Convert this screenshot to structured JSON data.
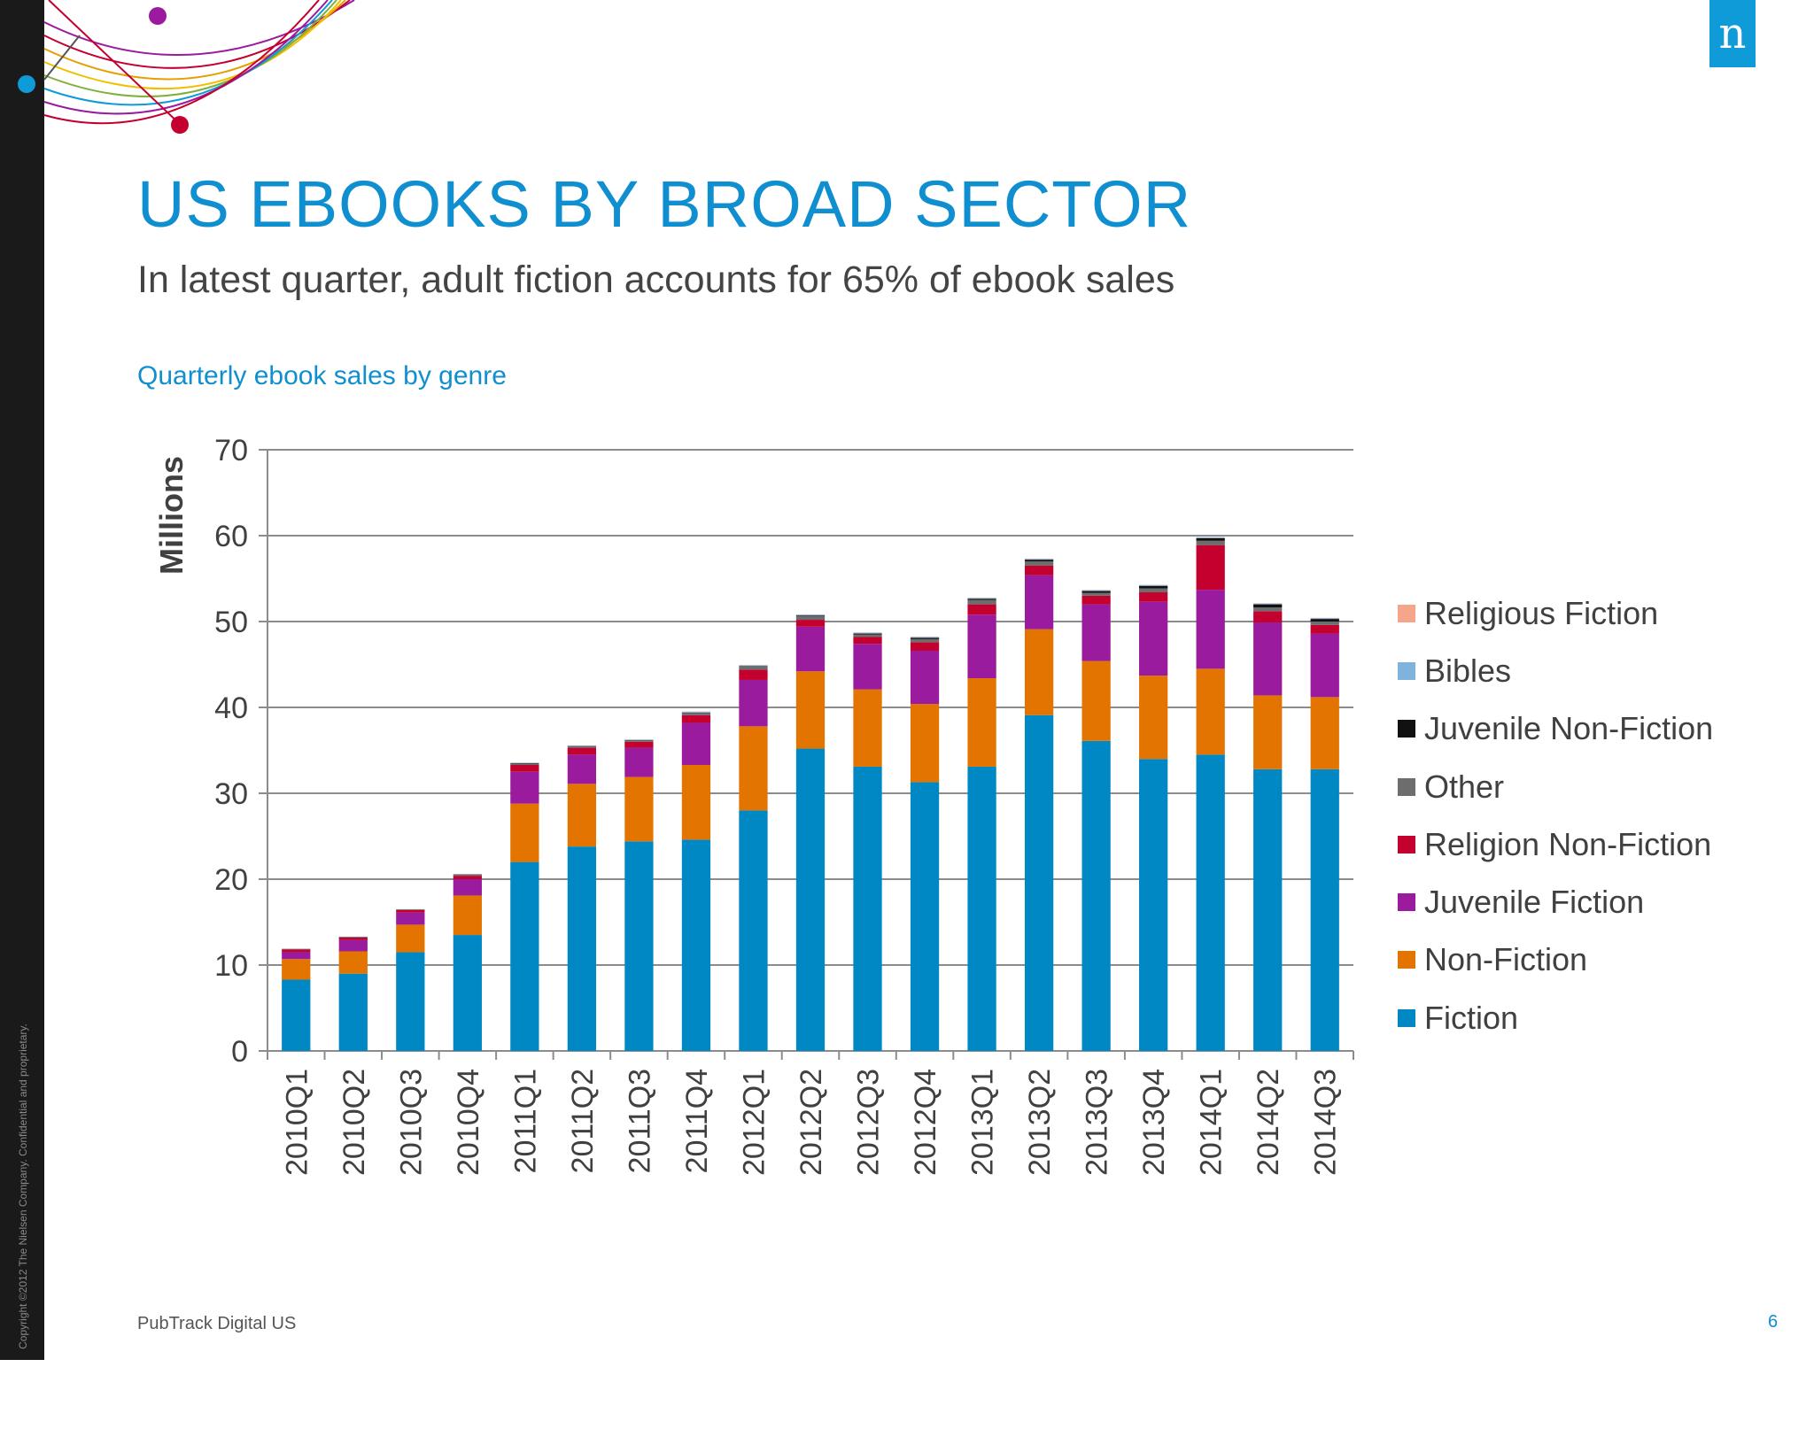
{
  "slide": {
    "title": "US EBOOKS BY BROAD SECTOR",
    "subtitle": "In latest quarter, adult fiction accounts for 65% of ebook sales",
    "chart_caption": "Quarterly ebook sales by genre",
    "footer": "PubTrack Digital US",
    "page_number": "6",
    "copyright": "Copyright ©2012 The Nielsen Company. Confidential and proprietary.",
    "logo_glyph": "n"
  },
  "colors": {
    "brand": "#0f8fd0",
    "Fiction": "#0088c4",
    "Non-Fiction": "#e37400",
    "Juvenile Fiction": "#9b1b9e",
    "Religion Non-Fiction": "#c4002f",
    "Other": "#6d6d6d",
    "Juvenile Non-Fiction": "#111111",
    "Bibles": "#7fb2dd",
    "Religious Fiction": "#f5a58a"
  },
  "chart_data": {
    "type": "bar",
    "stacked": true,
    "title": "Quarterly ebook sales by genre",
    "xlabel": "",
    "ylabel": "Millions",
    "ylim": [
      0,
      70
    ],
    "yticks": [
      0,
      10,
      20,
      30,
      40,
      50,
      60,
      70
    ],
    "grid": true,
    "legend_position": "right",
    "categories": [
      "2010Q1",
      "2010Q2",
      "2010Q3",
      "2010Q4",
      "2011Q1",
      "2011Q2",
      "2011Q3",
      "2011Q4",
      "2012Q1",
      "2012Q2",
      "2012Q3",
      "2012Q4",
      "2013Q1",
      "2013Q2",
      "2013Q3",
      "2013Q4",
      "2014Q1",
      "2014Q2",
      "2014Q3"
    ],
    "series": [
      {
        "name": "Fiction",
        "values": [
          8.3,
          9.0,
          11.5,
          13.5,
          22.0,
          23.8,
          24.4,
          24.6,
          28.0,
          35.2,
          33.1,
          31.3,
          33.1,
          39.1,
          36.1,
          34.0,
          34.5,
          32.8,
          32.8
        ]
      },
      {
        "name": "Non-Fiction",
        "values": [
          2.4,
          2.6,
          3.2,
          4.6,
          6.8,
          7.3,
          7.5,
          8.7,
          9.8,
          9.0,
          9.0,
          9.1,
          10.3,
          10.0,
          9.3,
          9.7,
          10.0,
          8.6,
          8.4
        ]
      },
      {
        "name": "Juvenile Fiction",
        "values": [
          0.8,
          1.3,
          1.4,
          1.9,
          3.7,
          3.4,
          3.4,
          4.9,
          5.4,
          5.2,
          5.3,
          6.2,
          7.4,
          6.3,
          6.6,
          8.6,
          9.2,
          8.5,
          7.4
        ]
      },
      {
        "name": "Religion Non-Fiction",
        "values": [
          0.3,
          0.3,
          0.3,
          0.4,
          0.8,
          0.8,
          0.7,
          0.9,
          1.2,
          0.8,
          0.8,
          1.0,
          1.2,
          1.1,
          1.0,
          1.1,
          5.2,
          1.3,
          1.0
        ]
      },
      {
        "name": "Other",
        "values": [
          0.05,
          0.05,
          0.05,
          0.1,
          0.15,
          0.15,
          0.15,
          0.25,
          0.35,
          0.4,
          0.3,
          0.35,
          0.5,
          0.5,
          0.35,
          0.45,
          0.5,
          0.45,
          0.4
        ]
      },
      {
        "name": "Juvenile Non-Fiction",
        "values": [
          0.03,
          0.03,
          0.03,
          0.05,
          0.05,
          0.05,
          0.05,
          0.05,
          0.05,
          0.1,
          0.1,
          0.15,
          0.15,
          0.2,
          0.2,
          0.3,
          0.3,
          0.35,
          0.3
        ]
      },
      {
        "name": "Bibles",
        "values": [
          0.02,
          0.02,
          0.02,
          0.05,
          0.05,
          0.05,
          0.05,
          0.1,
          0.1,
          0.1,
          0.1,
          0.1,
          0.1,
          0.1,
          0.1,
          0.1,
          0.1,
          0.1,
          0.1
        ]
      },
      {
        "name": "Religious Fiction",
        "values": [
          0.01,
          0.01,
          0.01,
          0.02,
          0.02,
          0.02,
          0.02,
          0.03,
          0.03,
          0.03,
          0.03,
          0.03,
          0.03,
          0.03,
          0.03,
          0.03,
          0.03,
          0.03,
          0.03
        ]
      }
    ],
    "legend_order": [
      "Religious Fiction",
      "Bibles",
      "Juvenile Non-Fiction",
      "Other",
      "Religion Non-Fiction",
      "Juvenile Fiction",
      "Non-Fiction",
      "Fiction"
    ]
  }
}
